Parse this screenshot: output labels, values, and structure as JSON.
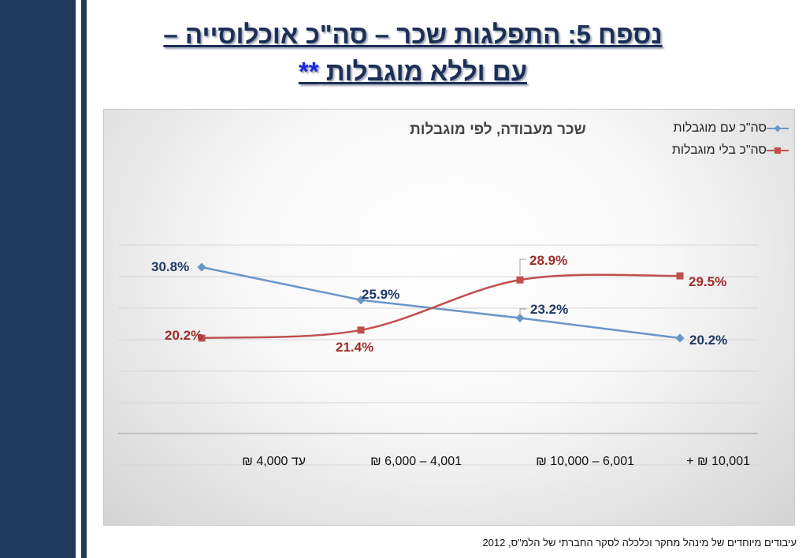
{
  "slide": {
    "title_line1": "נספח 5: התפלגות שכר – סה\"כ אוכלוסייה –",
    "title_line2_text": "עם וללא מוגבלות",
    "title_line2_mark": "**",
    "footer": "עיבודים מיוחדים של מינהל מחקר וכלכלה  לסקר החברתי של הלמ\"ס,   2012"
  },
  "colors": {
    "sidebar": "#1f3a5c",
    "title": "#1c2f57",
    "with_disabilities": "#6a96c8",
    "without_disabilities": "#c0504d",
    "label_blue": "#1f3864",
    "label_red": "#9b2d2a"
  },
  "chart_data": {
    "type": "line",
    "title": "שכר מעבודה, לפי מוגבלות",
    "categories": [
      "עד 4,000 ₪",
      "4,001 – 6,000 ₪",
      "6,001 – 10,000 ₪",
      "10,001 ₪ +"
    ],
    "series": [
      {
        "name": "סה\"כ עם מוגבלות",
        "values": [
          30.8,
          25.9,
          23.2,
          20.2
        ],
        "labels": [
          "30.8%",
          "25.9%",
          "23.2%",
          "20.2%"
        ],
        "marker": "diamond",
        "color": "#6a96c8"
      },
      {
        "name": "סה\"כ בלי מוגבלות",
        "values": [
          20.2,
          21.4,
          28.9,
          29.5
        ],
        "labels": [
          "20.2%",
          "21.4%",
          "28.9%",
          "29.5%"
        ],
        "marker": "square",
        "color": "#c0504d"
      }
    ],
    "legend": "top-right",
    "grid": true,
    "y_axis_labels_visible": false
  }
}
